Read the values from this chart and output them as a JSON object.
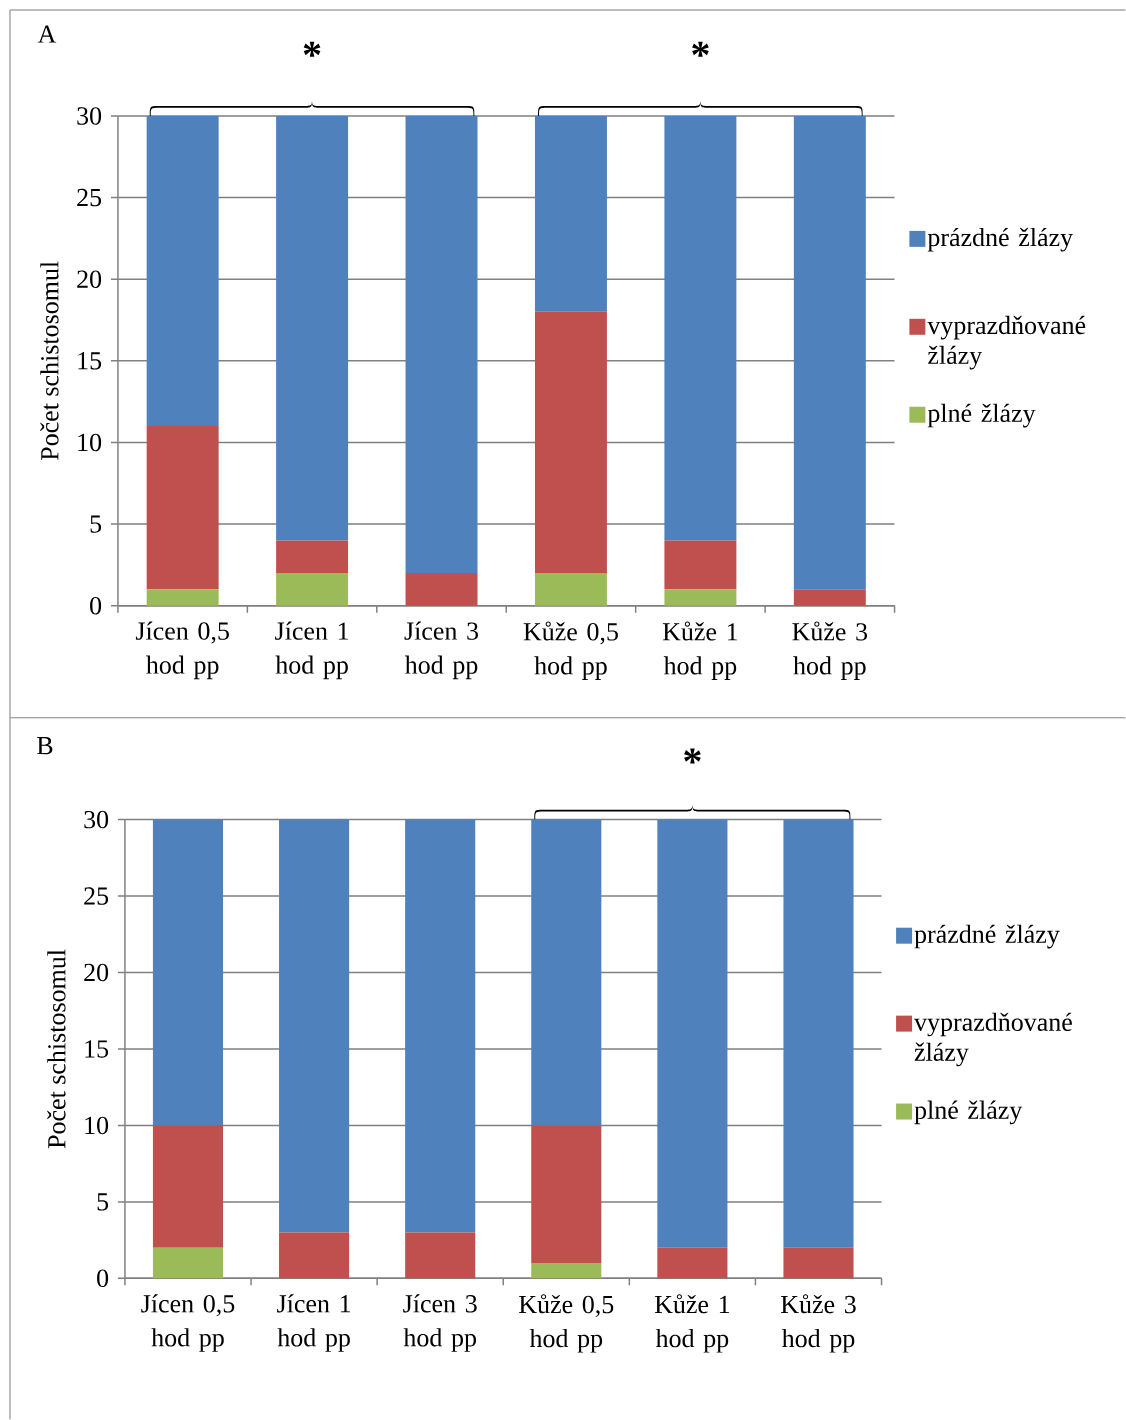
{
  "chart_data": [
    {
      "type": "bar",
      "title": "A",
      "ylabel": "Počet schistosomul",
      "stacked": true,
      "categories": [
        "Jícen 0,5 hod pp",
        "Jícen 1 hod pp",
        "Jícen 3 hod pp",
        "Kůže 0,5 hod pp",
        "Kůže 1 hod pp",
        "Kůže 3 hod pp"
      ],
      "ylim": [
        0,
        30
      ],
      "yticks": [
        0,
        5,
        10,
        15,
        20,
        25,
        30
      ],
      "grid": "y",
      "legend": "right",
      "annotations": [
        "*",
        "*"
      ],
      "series": [
        {
          "name": "plné žlázy",
          "color": "#9bbb59",
          "values": [
            1,
            2,
            0,
            2,
            1,
            0
          ]
        },
        {
          "name": "vyprazdňované žlázy",
          "color": "#c0504d",
          "values": [
            10,
            2,
            2,
            16,
            3,
            1
          ]
        },
        {
          "name": "prázdné žlázy",
          "color": "#4f81bd",
          "values": [
            19,
            26,
            28,
            12,
            26,
            29
          ]
        }
      ]
    },
    {
      "type": "bar",
      "title": "B",
      "ylabel": "Počet schistosomul",
      "stacked": true,
      "categories": [
        "Jícen 0,5 hod pp",
        "Jícen 1 hod pp",
        "Jícen 3 hod pp",
        "Kůže 0,5 hod pp",
        "Kůže 1 hod pp",
        "Kůže 3 hod pp"
      ],
      "ylim": [
        0,
        30
      ],
      "yticks": [
        0,
        5,
        10,
        15,
        20,
        25,
        30
      ],
      "grid": "y",
      "legend": "right",
      "annotations": [
        "*"
      ],
      "series": [
        {
          "name": "plné žlázy",
          "color": "#9bbb59",
          "values": [
            2,
            0,
            0,
            1,
            0,
            0
          ]
        },
        {
          "name": "vyprazdňované žlázy",
          "color": "#c0504d",
          "values": [
            8,
            3,
            3,
            9,
            2,
            2
          ]
        },
        {
          "name": "prázdné žlázy",
          "color": "#4f81bd",
          "values": [
            20,
            27,
            27,
            20,
            28,
            28
          ]
        }
      ]
    }
  ]
}
